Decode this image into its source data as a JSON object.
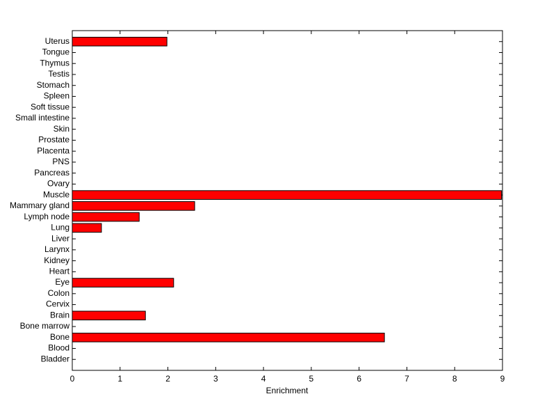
{
  "chart_data": {
    "type": "barh",
    "xlabel": "Enrichment",
    "categories": [
      "Bladder",
      "Blood",
      "Bone",
      "Bone marrow",
      "Brain",
      "Cervix",
      "Colon",
      "Eye",
      "Heart",
      "Kidney",
      "Larynx",
      "Liver",
      "Lung",
      "Lymph node",
      "Mammary gland",
      "Muscle",
      "Ovary",
      "Pancreas",
      "PNS",
      "Placenta",
      "Prostate",
      "Skin",
      "Small intestine",
      "Soft tissue",
      "Spleen",
      "Stomach",
      "Testis",
      "Thymus",
      "Tongue",
      "Uterus"
    ],
    "values": [
      0,
      0,
      6.53,
      0,
      1.53,
      0,
      0,
      2.12,
      0,
      0,
      0,
      0,
      0.61,
      1.4,
      2.56,
      8.98,
      0,
      0,
      0,
      0,
      0,
      0,
      0,
      0,
      0,
      0,
      0,
      0,
      0,
      1.98
    ],
    "color": "#ff0000",
    "xlim": [
      0,
      9
    ],
    "xticks": [
      0,
      1,
      2,
      3,
      4,
      5,
      6,
      7,
      8,
      9
    ]
  }
}
